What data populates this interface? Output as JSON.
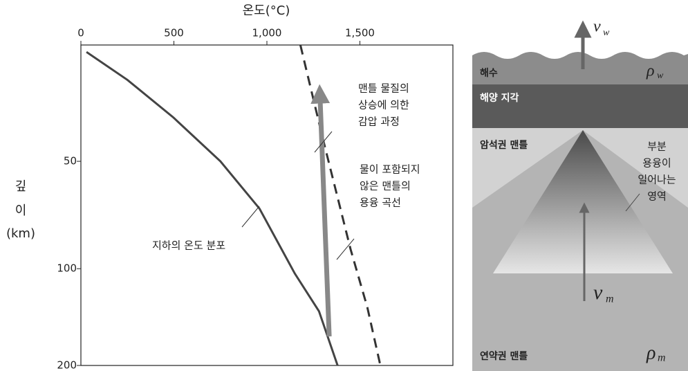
{
  "chart_data": {
    "type": "line",
    "title": "온도(°C)",
    "ylabel": [
      "깊",
      "이",
      "(km)"
    ],
    "xlim": [
      0,
      2000
    ],
    "xticks": [
      0,
      500,
      {
        "value": 1000,
        "label": "1,000"
      },
      {
        "value": 1500,
        "label": "1,500"
      }
    ],
    "ylim": [
      0,
      200
    ],
    "yticks": [
      50,
      100,
      200
    ],
    "series": [
      {
        "color": "#444444",
        "style": "solid",
        "x": [
          30,
          250,
          495,
          750,
          960,
          1150,
          1280,
          1380
        ],
        "values": [
          3,
          15,
          31,
          50,
          72,
          105,
          144,
          200
        ]
      },
      {
        "color": "#333333",
        "style": "dashed",
        "x": [
          1180,
          1300,
          1450,
          1540,
          1610
        ],
        "values": [
          0,
          40,
          91,
          140,
          200
        ]
      },
      {
        "color": "#888888",
        "style": "arrow",
        "x": [
          1335,
          1285
        ],
        "values": [
          170,
          21
        ]
      }
    ],
    "annotations": [
      {
        "lines": [
          "지하의 온도 분포"
        ],
        "series": 0
      },
      {
        "lines": [
          "물이 포함되지",
          "않은 맨틀의",
          "용융 곡선"
        ],
        "series": 1
      },
      {
        "lines": [
          "맨틀 물질의",
          "상승에 의한",
          "감압 과정"
        ],
        "series": 2
      }
    ]
  },
  "diagram": {
    "sea": "해수",
    "crust": "해양 지각",
    "lithosphere": "암석권 맨틀",
    "asthenosphere": "연약권 맨틀",
    "melt_zone": [
      "부분",
      "용융이",
      "일어나는",
      "영역"
    ],
    "v_w": "v",
    "v_w_sub": "w",
    "rho_w": "ρ",
    "rho_w_sub": "w",
    "v_m": "v",
    "v_m_sub": "m",
    "rho_m": "ρ",
    "rho_m_sub": "m"
  }
}
